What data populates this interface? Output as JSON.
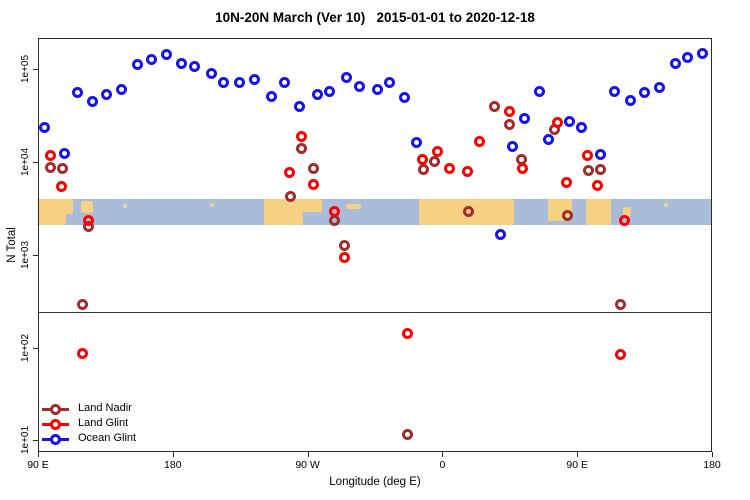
{
  "title": "10N-20N March (Ver 10)   2015-01-01 to 2020-12-18",
  "axes": {
    "x_label": "Longitude (deg E)",
    "y_label": "N Total",
    "x_ticks": [
      {
        "lon": 90,
        "label": "90 E"
      },
      {
        "lon": 180,
        "label": "180"
      },
      {
        "lon": 270,
        "label": "90 W"
      },
      {
        "lon": 360,
        "label": "0"
      },
      {
        "lon": 450,
        "label": "90 E"
      },
      {
        "lon": 540,
        "label": "180"
      }
    ],
    "y_ticks": [
      {
        "value": 100000,
        "label": "1e+05"
      },
      {
        "value": 10000,
        "label": "1e+04"
      },
      {
        "value": 1000,
        "label": "1e+03"
      },
      {
        "value": 100,
        "label": "1e+02"
      },
      {
        "value": 10,
        "label": "1e+01"
      }
    ],
    "xlim": [
      90,
      540
    ],
    "ylog_lim": [
      0.875,
      5.333
    ]
  },
  "legend": [
    {
      "label": "Land Nadir",
      "color": "#A02C2C"
    },
    {
      "label": "Land Glint",
      "color": "#FF0000"
    },
    {
      "label": "Ocean Glint",
      "color": "#1414F0"
    }
  ],
  "chart_data": {
    "type": "scatter",
    "title": "10N-20N March (Ver 10)   2015-01-01 to 2020-12-18",
    "xlabel": "Longitude (deg E)",
    "ylabel": "N Total",
    "x_axis_note": "longitude wraps: 90E..180..90W..0..90E..180, encoded as 90..540 deg",
    "y_scale": "log10",
    "reference_line_value": 250,
    "series": [
      {
        "name": "Land Nadir",
        "color": "#A02C2C",
        "points": [
          [
            98,
            8800
          ],
          [
            106,
            8600
          ],
          [
            123,
            2050
          ],
          [
            119,
            300
          ],
          [
            265,
            14200
          ],
          [
            273,
            8600
          ],
          [
            258,
            4300
          ],
          [
            287,
            2400
          ],
          [
            294,
            1300
          ],
          [
            336,
            12
          ],
          [
            347,
            8400
          ],
          [
            354,
            10300
          ],
          [
            377,
            3000
          ],
          [
            394,
            40000
          ],
          [
            404,
            26000
          ],
          [
            412,
            10800
          ],
          [
            434,
            23000
          ],
          [
            443,
            2700
          ],
          [
            457,
            8200
          ],
          [
            465,
            8400
          ],
          [
            478,
            300
          ]
        ]
      },
      {
        "name": "Land Glint",
        "color": "#FF0000",
        "points": [
          [
            98,
            11900
          ],
          [
            105,
            5500
          ],
          [
            123,
            2400
          ],
          [
            119,
            88
          ],
          [
            265,
            19000
          ],
          [
            257,
            7800
          ],
          [
            273,
            5900
          ],
          [
            287,
            3000
          ],
          [
            294,
            950
          ],
          [
            336,
            145
          ],
          [
            346,
            10800
          ],
          [
            356,
            13100
          ],
          [
            364,
            8600
          ],
          [
            376,
            8000
          ],
          [
            384,
            16800
          ],
          [
            404,
            36000
          ],
          [
            413,
            8600
          ],
          [
            436,
            27000
          ],
          [
            442,
            6200
          ],
          [
            456,
            11900
          ],
          [
            463,
            5700
          ],
          [
            481,
            2400
          ],
          [
            478,
            86
          ]
        ]
      },
      {
        "name": "Ocean Glint",
        "color": "#1414F0",
        "points": [
          [
            94,
            24000
          ],
          [
            107,
            12500
          ],
          [
            116,
            57000
          ],
          [
            126,
            46000
          ],
          [
            135,
            54000
          ],
          [
            145,
            61000
          ],
          [
            156,
            113000
          ],
          [
            165,
            128000
          ],
          [
            175,
            145000
          ],
          [
            185,
            116000
          ],
          [
            194,
            110000
          ],
          [
            205,
            91000
          ],
          [
            213,
            74000
          ],
          [
            224,
            74000
          ],
          [
            234,
            78000
          ],
          [
            245,
            52000
          ],
          [
            254,
            74000
          ],
          [
            264,
            40000
          ],
          [
            276,
            55000
          ],
          [
            284,
            58000
          ],
          [
            295,
            82000
          ],
          [
            304,
            66000
          ],
          [
            316,
            62000
          ],
          [
            324,
            74000
          ],
          [
            334,
            51000
          ],
          [
            342,
            16400
          ],
          [
            398,
            1680
          ],
          [
            406,
            14900
          ],
          [
            414,
            30000
          ],
          [
            424,
            58000
          ],
          [
            430,
            18000
          ],
          [
            444,
            28000
          ],
          [
            452,
            24000
          ],
          [
            465,
            12200
          ],
          [
            474,
            58000
          ],
          [
            485,
            47000
          ],
          [
            494,
            57000
          ],
          [
            504,
            64000
          ],
          [
            515,
            116000
          ],
          [
            523,
            135000
          ],
          [
            533,
            149000
          ]
        ]
      }
    ],
    "map_band": {
      "value_top": 4100,
      "value_bottom": 2150,
      "ocean_color": "#A9BDDB",
      "land_color": "#F6D183",
      "land_patches": [
        {
          "lon": 90,
          "lonw": 18,
          "t": 0.0,
          "b": 1.0
        },
        {
          "lon": 104,
          "lonw": 9,
          "t": 0.0,
          "b": 0.6
        },
        {
          "lon": 118,
          "lonw": 8,
          "t": 0.1,
          "b": 0.55
        },
        {
          "lon": 146,
          "lonw": 3,
          "t": 0.2,
          "b": 0.35
        },
        {
          "lon": 204,
          "lonw": 3,
          "t": 0.15,
          "b": 0.3
        },
        {
          "lon": 240,
          "lonw": 26,
          "t": 0.0,
          "b": 1.0
        },
        {
          "lon": 264,
          "lonw": 15,
          "t": 0.0,
          "b": 0.5
        },
        {
          "lon": 295,
          "lonw": 10,
          "t": 0.2,
          "b": 0.4
        },
        {
          "lon": 344,
          "lonw": 63,
          "t": 0.0,
          "b": 1.0
        },
        {
          "lon": 430,
          "lonw": 16,
          "t": 0.0,
          "b": 0.85
        },
        {
          "lon": 455,
          "lonw": 17,
          "t": 0.0,
          "b": 1.0
        },
        {
          "lon": 480,
          "lonw": 5,
          "t": 0.3,
          "b": 0.65
        },
        {
          "lon": 507,
          "lonw": 3,
          "t": 0.15,
          "b": 0.3
        }
      ]
    }
  }
}
